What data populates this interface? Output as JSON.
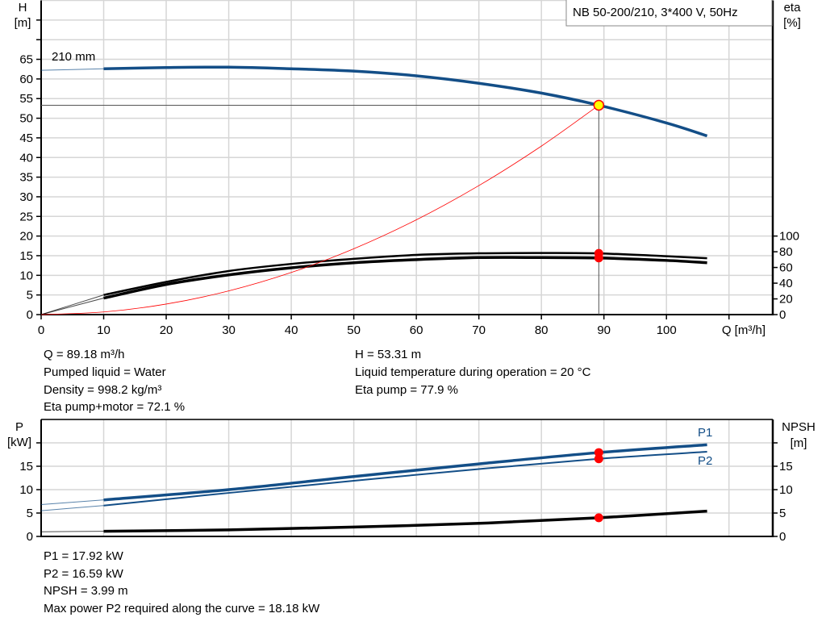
{
  "chart_data": [
    {
      "type": "line",
      "title": "NB 50-200/210, 3*400 V, 50Hz",
      "xlabel": "Q [m³/h]",
      "ylabel": "H",
      "yunit": "[m]",
      "y2label": "eta",
      "y2unit": "[%]",
      "xlim": [
        0,
        117
      ],
      "ylim": [
        0,
        80
      ],
      "y2lim": [
        0,
        400
      ],
      "grid": true,
      "x_ticks": [
        0,
        10,
        20,
        30,
        40,
        50,
        60,
        70,
        80,
        90,
        100
      ],
      "y_ticks": [
        0,
        5,
        10,
        15,
        20,
        25,
        30,
        35,
        40,
        45,
        50,
        55,
        60,
        65
      ],
      "y2_ticks": [
        0,
        20,
        40,
        60,
        80,
        100
      ],
      "curve_annotation": "210 mm",
      "series": [
        {
          "key": "h",
          "axis": "y",
          "color": "#134e87",
          "x": [
            0,
            10,
            20,
            30,
            40,
            50,
            60,
            70,
            80,
            89.18,
            100,
            106.5
          ],
          "y": [
            62.2,
            62.6,
            62.9,
            63.0,
            62.6,
            62.0,
            60.8,
            58.9,
            56.4,
            53.31,
            48.8,
            45.5
          ]
        },
        {
          "key": "eta_pump",
          "axis": "y2",
          "color": "#000000",
          "x": [
            0,
            10,
            20,
            30,
            40,
            50,
            60,
            70,
            80,
            89.18,
            100,
            106.5
          ],
          "y": [
            0,
            25,
            41.6,
            55.5,
            64.5,
            71,
            76,
            78,
            78.4,
            77.9,
            74.3,
            71.8
          ]
        },
        {
          "key": "eta_pump_motor",
          "axis": "y2",
          "color": "#000000",
          "x": [
            0,
            10,
            20,
            30,
            40,
            50,
            60,
            70,
            80,
            89.18,
            100,
            106.5
          ],
          "y": [
            0,
            21,
            38.4,
            50.6,
            59.6,
            66,
            70,
            72.6,
            72.6,
            72.1,
            69,
            66
          ]
        },
        {
          "key": "system",
          "axis": "y",
          "color": "#ff0000",
          "type": "parabola",
          "x": [
            0,
            10,
            20,
            30,
            40,
            50,
            60,
            70,
            80,
            89.18
          ],
          "y": [
            0,
            0.67,
            2.68,
            6.03,
            10.72,
            16.76,
            24.13,
            32.85,
            42.9,
            53.31
          ]
        }
      ],
      "operating_point": {
        "q": 89.18,
        "h": 53.31,
        "eta_pump": 77.9,
        "eta_pump_motor": 72.1
      },
      "colors": {
        "grid": "#d6d6d6",
        "point_fill": "#ffff00",
        "point_stroke": "#ff0000",
        "marker": "#ff0000"
      }
    },
    {
      "type": "line",
      "xlabel": "",
      "ylabel": "P",
      "yunit": "[kW]",
      "y2label": "NPSH",
      "y2unit": "[m]",
      "xlim": [
        0,
        117
      ],
      "ylim": [
        0,
        25
      ],
      "y2lim": [
        0,
        25
      ],
      "grid": true,
      "y_ticks": [
        0,
        5,
        10,
        15
      ],
      "y2_ticks": [
        0,
        5,
        10,
        15
      ],
      "series": [
        {
          "key": "p1",
          "name": "P1",
          "axis": "y",
          "color": "#134e87",
          "x": [
            0,
            10,
            30,
            50,
            70,
            89.18,
            106.5
          ],
          "y": [
            6.8,
            7.8,
            10.0,
            12.8,
            15.5,
            17.92,
            19.6
          ]
        },
        {
          "key": "p2",
          "name": "P2",
          "axis": "y",
          "color": "#134e87",
          "x": [
            0,
            10,
            30,
            50,
            70,
            89.18,
            106.5
          ],
          "y": [
            5.5,
            6.6,
            9.3,
            11.9,
            14.4,
            16.59,
            18.1
          ]
        },
        {
          "key": "npsh",
          "axis": "y2",
          "color": "#000000",
          "x": [
            0,
            10,
            30,
            50,
            70,
            89.18,
            106.5
          ],
          "y": [
            1.0,
            1.1,
            1.4,
            2.0,
            2.8,
            3.99,
            5.4
          ]
        }
      ],
      "operating_point": {
        "q": 89.18,
        "p1": 17.92,
        "p2": 16.59,
        "npsh": 3.99
      }
    }
  ],
  "results_top": {
    "q": "Q = 89.18 m³/h",
    "liquid": "Pumped liquid = Water",
    "density": "Density = 998.2 kg/m³",
    "eta_pm": "Eta pump+motor = 72.1 %",
    "h": "H = 53.31 m",
    "temp": "Liquid temperature during operation = 20 °C",
    "eta_pump": "Eta pump = 77.9 %"
  },
  "results_bottom": {
    "p1": "P1 = 17.92 kW",
    "p2": "P2 = 16.59 kW",
    "npsh": "NPSH = 3.99 m",
    "max_p2": "Max power P2 required along the curve = 18.18 kW"
  }
}
